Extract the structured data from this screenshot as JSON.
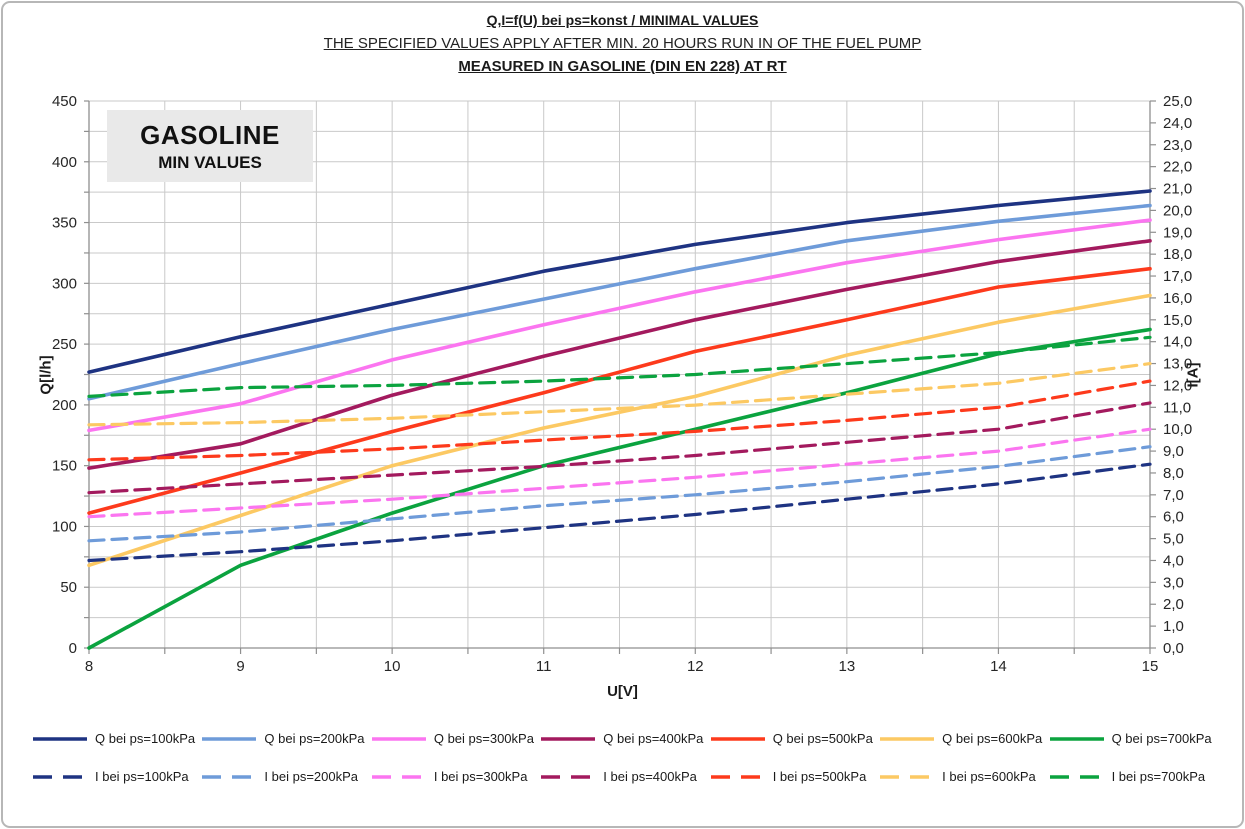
{
  "titles": {
    "line1": "Q,I=f(U) bei ps=konst / MINIMAL VALUES",
    "line2": "THE SPECIFIED VALUES APPLY AFTER MIN. 20 HOURS RUN IN OF THE FUEL PUMP",
    "line3": "MEASURED IN GASOLINE (DIN EN 228) AT RT"
  },
  "annotation": {
    "line1": "GASOLINE",
    "line2": "MIN VALUES"
  },
  "axes": {
    "x_label": "U[V]",
    "y_left_label": "Q[l/h]",
    "y_right_label": "I[A]",
    "x_tick_labels": [
      "8",
      "9",
      "10",
      "11",
      "12",
      "13",
      "14",
      "15"
    ],
    "y_left_tick_labels": [
      "0",
      "50",
      "100",
      "150",
      "200",
      "250",
      "300",
      "350",
      "400",
      "450"
    ],
    "y_right_tick_labels": [
      "0,0",
      "1,0",
      "2,0",
      "3,0",
      "4,0",
      "5,0",
      "6,0",
      "7,0",
      "8,0",
      "9,0",
      "10,0",
      "11,0",
      "12,0",
      "13,0",
      "14,0",
      "15,0",
      "16,0",
      "17,0",
      "18,0",
      "19,0",
      "20,0",
      "21,0",
      "22,0",
      "23,0",
      "24,0",
      "25,0"
    ]
  },
  "chart_data": {
    "type": "line",
    "x": [
      8,
      9,
      10,
      11,
      12,
      13,
      14,
      15
    ],
    "x_range": [
      8,
      15
    ],
    "x_minor_grid_step": 0.5,
    "y_left_range": [
      0,
      450
    ],
    "y_left_grid_step": 25,
    "y_right_range": [
      0,
      25
    ],
    "y_right_tick_step": 1,
    "grid_color": "#c9c9c9",
    "axis_color": "#8f8f8f",
    "legend_position": "bottom",
    "series": [
      {
        "name": "Q  bei ps=100kPa",
        "axis": "left",
        "dashed": false,
        "color": "#1e3382",
        "values": [
          227,
          256,
          283,
          310,
          332,
          350,
          364,
          376
        ]
      },
      {
        "name": "Q  bei ps=200kPa",
        "axis": "left",
        "dashed": false,
        "color": "#6e9bd9",
        "values": [
          205,
          234,
          262,
          287,
          312,
          335,
          351,
          364
        ]
      },
      {
        "name": "Q  bei ps=300kPa",
        "axis": "left",
        "dashed": false,
        "color": "#fb75f0",
        "values": [
          179,
          201,
          237,
          266,
          293,
          317,
          336,
          352
        ]
      },
      {
        "name": "Q  bei ps=400kPa",
        "axis": "left",
        "dashed": false,
        "color": "#a31a5e",
        "values": [
          148,
          168,
          208,
          240,
          270,
          295,
          318,
          335
        ]
      },
      {
        "name": "Q  bei ps=500kPa",
        "axis": "left",
        "dashed": false,
        "color": "#fd3a1c",
        "values": [
          111,
          144,
          178,
          210,
          244,
          270,
          297,
          312
        ]
      },
      {
        "name": "Q  bei ps=600kPa",
        "axis": "left",
        "dashed": false,
        "color": "#fcc963",
        "values": [
          68,
          109,
          150,
          181,
          207,
          241,
          268,
          290
        ]
      },
      {
        "name": "Q  bei ps=700kPa",
        "axis": "left",
        "dashed": false,
        "color": "#0ba33f",
        "values": [
          0,
          68,
          111,
          150,
          180,
          210,
          242,
          262
        ]
      },
      {
        "name": "I  bei ps=100kPa",
        "axis": "right",
        "dashed": true,
        "color": "#1e3382",
        "values": [
          4.0,
          4.4,
          4.9,
          5.5,
          6.1,
          6.8,
          7.5,
          8.4
        ]
      },
      {
        "name": "I  bei ps=200kPa",
        "axis": "right",
        "dashed": true,
        "color": "#6e9bd9",
        "values": [
          4.9,
          5.3,
          5.9,
          6.5,
          7.0,
          7.6,
          8.3,
          9.2
        ]
      },
      {
        "name": "I  bei ps=300kPa",
        "axis": "right",
        "dashed": true,
        "color": "#fb75f0",
        "values": [
          6.0,
          6.4,
          6.8,
          7.3,
          7.8,
          8.4,
          9.0,
          10.0
        ]
      },
      {
        "name": "I  bei ps=400kPa",
        "axis": "right",
        "dashed": true,
        "color": "#a31a5e",
        "values": [
          7.1,
          7.5,
          7.9,
          8.3,
          8.8,
          9.4,
          10.0,
          11.2
        ]
      },
      {
        "name": "I  bei ps=500kPa",
        "axis": "right",
        "dashed": true,
        "color": "#fd3a1c",
        "values": [
          8.6,
          8.8,
          9.1,
          9.5,
          9.9,
          10.4,
          11.0,
          12.2
        ]
      },
      {
        "name": "I  bei ps=600kPa",
        "axis": "right",
        "dashed": true,
        "color": "#fcc963",
        "values": [
          10.2,
          10.3,
          10.5,
          10.8,
          11.1,
          11.6,
          12.1,
          13.0
        ]
      },
      {
        "name": "I  bei ps=700kPa",
        "axis": "right",
        "dashed": true,
        "color": "#0ba33f",
        "values": [
          11.5,
          11.9,
          12.0,
          12.2,
          12.5,
          13.0,
          13.5,
          14.2
        ]
      }
    ]
  }
}
